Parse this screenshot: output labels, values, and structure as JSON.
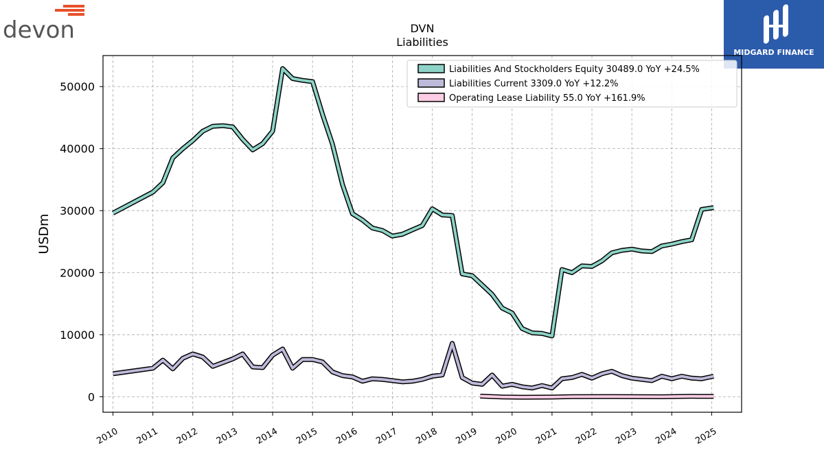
{
  "logos": {
    "left_brand": "devon",
    "right_brand": "MIDGARD FINANCE"
  },
  "colors": {
    "series_1": "#8dd3c7",
    "series_2": "#bebada",
    "series_3": "#fccde5",
    "devon_orange": "#e8502a",
    "devon_gray": "#555555",
    "midgard_blue": "#2b5bab"
  },
  "chart_data": {
    "type": "line",
    "title": "DVN",
    "subtitle": "Liabilities",
    "xlabel": "",
    "ylabel": "USDm",
    "xlim": [
      2009.75,
      2025.75
    ],
    "ylim": [
      -2500,
      55000
    ],
    "yticks": [
      0,
      10000,
      20000,
      30000,
      40000,
      50000
    ],
    "xticks": [
      "2010",
      "2011",
      "2012",
      "2013",
      "2014",
      "2015",
      "2016",
      "2017",
      "2018",
      "2019",
      "2020",
      "2021",
      "2022",
      "2023",
      "2024",
      "2025"
    ],
    "grid": true,
    "legend_position": "top-right",
    "series": [
      {
        "name": "Liabilities And Stockholders Equity  30489.0 YoY +24.5%",
        "color": "#8dd3c7",
        "points": [
          [
            2010.0,
            29600
          ],
          [
            2011.0,
            33000
          ],
          [
            2011.25,
            34500
          ],
          [
            2011.5,
            38500
          ],
          [
            2011.75,
            40000
          ],
          [
            2012.0,
            41300
          ],
          [
            2012.25,
            42800
          ],
          [
            2012.5,
            43600
          ],
          [
            2012.75,
            43700
          ],
          [
            2013.0,
            43500
          ],
          [
            2013.25,
            41500
          ],
          [
            2013.5,
            39800
          ],
          [
            2013.75,
            40800
          ],
          [
            2014.0,
            42800
          ],
          [
            2014.25,
            52900
          ],
          [
            2014.5,
            51300
          ],
          [
            2014.75,
            51000
          ],
          [
            2015.0,
            50800
          ],
          [
            2015.25,
            45500
          ],
          [
            2015.5,
            40700
          ],
          [
            2015.75,
            34200
          ],
          [
            2016.0,
            29500
          ],
          [
            2016.25,
            28500
          ],
          [
            2016.5,
            27200
          ],
          [
            2016.75,
            26800
          ],
          [
            2017.0,
            25900
          ],
          [
            2017.25,
            26200
          ],
          [
            2017.5,
            26900
          ],
          [
            2017.75,
            27600
          ],
          [
            2018.0,
            30300
          ],
          [
            2018.25,
            29300
          ],
          [
            2018.5,
            29200
          ],
          [
            2018.75,
            19800
          ],
          [
            2019.0,
            19500
          ],
          [
            2019.25,
            18000
          ],
          [
            2019.5,
            16500
          ],
          [
            2019.75,
            14300
          ],
          [
            2020.0,
            13500
          ],
          [
            2020.25,
            11000
          ],
          [
            2020.5,
            10300
          ],
          [
            2020.75,
            10200
          ],
          [
            2021.0,
            9800
          ],
          [
            2021.25,
            20500
          ],
          [
            2021.5,
            20000
          ],
          [
            2021.75,
            21100
          ],
          [
            2022.0,
            21000
          ],
          [
            2022.25,
            21900
          ],
          [
            2022.5,
            23200
          ],
          [
            2022.75,
            23600
          ],
          [
            2023.0,
            23800
          ],
          [
            2023.25,
            23500
          ],
          [
            2023.5,
            23400
          ],
          [
            2023.75,
            24300
          ],
          [
            2024.0,
            24600
          ],
          [
            2024.25,
            25000
          ],
          [
            2024.5,
            25300
          ],
          [
            2024.75,
            30200
          ],
          [
            2025.05,
            30489
          ]
        ]
      },
      {
        "name": "Liabilities Current  3309.0 YoY +12.2%",
        "color": "#bebada",
        "points": [
          [
            2010.0,
            3700
          ],
          [
            2011.0,
            4600
          ],
          [
            2011.25,
            5900
          ],
          [
            2011.5,
            4500
          ],
          [
            2011.75,
            6200
          ],
          [
            2012.0,
            6900
          ],
          [
            2012.25,
            6400
          ],
          [
            2012.5,
            4900
          ],
          [
            2012.75,
            5500
          ],
          [
            2013.0,
            6100
          ],
          [
            2013.25,
            6900
          ],
          [
            2013.5,
            4800
          ],
          [
            2013.75,
            4700
          ],
          [
            2014.0,
            6700
          ],
          [
            2014.25,
            7700
          ],
          [
            2014.5,
            4600
          ],
          [
            2014.75,
            6000
          ],
          [
            2015.0,
            6000
          ],
          [
            2015.25,
            5600
          ],
          [
            2015.5,
            4000
          ],
          [
            2015.75,
            3400
          ],
          [
            2016.0,
            3200
          ],
          [
            2016.25,
            2500
          ],
          [
            2016.5,
            2900
          ],
          [
            2016.75,
            2800
          ],
          [
            2017.0,
            2600
          ],
          [
            2017.25,
            2400
          ],
          [
            2017.5,
            2500
          ],
          [
            2017.75,
            2800
          ],
          [
            2018.0,
            3300
          ],
          [
            2018.25,
            3500
          ],
          [
            2018.5,
            8600
          ],
          [
            2018.75,
            3100
          ],
          [
            2019.0,
            2200
          ],
          [
            2019.25,
            2000
          ],
          [
            2019.5,
            3500
          ],
          [
            2019.75,
            1700
          ],
          [
            2020.0,
            2000
          ],
          [
            2020.25,
            1600
          ],
          [
            2020.5,
            1400
          ],
          [
            2020.75,
            1800
          ],
          [
            2021.0,
            1400
          ],
          [
            2021.25,
            2900
          ],
          [
            2021.5,
            3100
          ],
          [
            2021.75,
            3600
          ],
          [
            2022.0,
            3000
          ],
          [
            2022.25,
            3700
          ],
          [
            2022.5,
            4100
          ],
          [
            2022.75,
            3400
          ],
          [
            2023.0,
            3000
          ],
          [
            2023.25,
            2800
          ],
          [
            2023.5,
            2600
          ],
          [
            2023.75,
            3300
          ],
          [
            2024.0,
            2900
          ],
          [
            2024.25,
            3300
          ],
          [
            2024.5,
            3000
          ],
          [
            2024.75,
            2900
          ],
          [
            2025.05,
            3309
          ]
        ]
      },
      {
        "name": "Operating Lease Liability  55.0 YoY +161.9%",
        "color": "#fccde5",
        "points": [
          [
            2019.2,
            100
          ],
          [
            2019.75,
            -50
          ],
          [
            2020.25,
            -80
          ],
          [
            2021.0,
            -60
          ],
          [
            2021.5,
            20
          ],
          [
            2022.5,
            30
          ],
          [
            2023.75,
            0
          ],
          [
            2024.5,
            60
          ],
          [
            2025.05,
            55
          ]
        ]
      }
    ]
  }
}
